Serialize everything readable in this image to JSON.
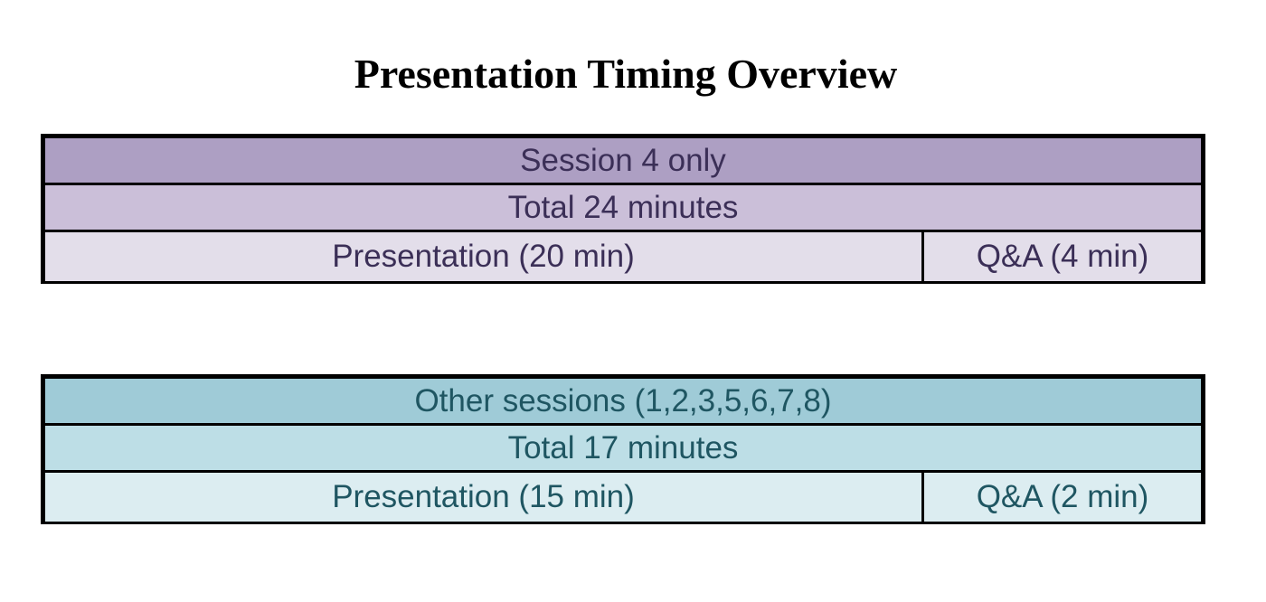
{
  "title": "Presentation Timing Overview",
  "tables": [
    {
      "header": "Session 4 only",
      "total": "Total 24 minutes",
      "presentation": "Presentation (20 min)",
      "qa": "Q&A (4 min)",
      "colors": {
        "text": "#3b2f57",
        "header_bg": "#ad9fc3",
        "total_bg": "#cbbfd9",
        "split_bg": "#e3deea"
      }
    },
    {
      "header": "Other sessions (1,2,3,5,6,7,8)",
      "total": "Total 17 minutes",
      "presentation": "Presentation (15 min)",
      "qa": "Q&A (2 min)",
      "colors": {
        "text": "#1f5662",
        "header_bg": "#9fcbd7",
        "total_bg": "#bddee6",
        "split_bg": "#dcedf1"
      }
    }
  ]
}
